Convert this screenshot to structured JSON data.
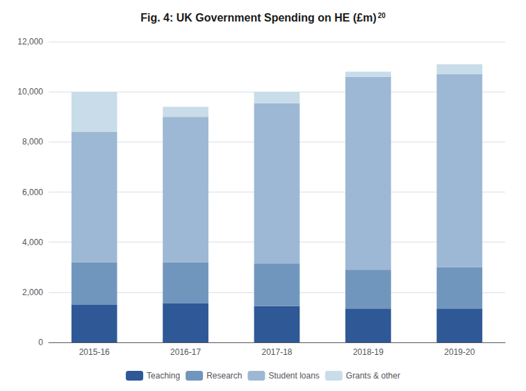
{
  "chart_data": {
    "type": "bar",
    "title": "Fig. 4: UK Government Spending on HE (£m)",
    "annotations": [
      "20"
    ],
    "categories": [
      "2015-16",
      "2016-17",
      "2017-18",
      "2018-19",
      "2019-20"
    ],
    "series": [
      {
        "name": "Teaching",
        "color": "#2e5896",
        "values": [
          1500,
          1550,
          1450,
          1350,
          1350
        ]
      },
      {
        "name": "Research",
        "color": "#7096be",
        "values": [
          1700,
          1650,
          1700,
          1550,
          1650
        ]
      },
      {
        "name": "Student loans",
        "color": "#9db8d4",
        "values": [
          5200,
          5800,
          6400,
          7700,
          7700
        ]
      },
      {
        "name": "Grants & other",
        "color": "#c8dce9",
        "values": [
          1600,
          400,
          450,
          200,
          400
        ]
      }
    ],
    "stacked": true,
    "ylim": [
      0,
      12000
    ],
    "yticks": [
      0,
      {
        "value": 2000,
        "label": "2,000"
      },
      {
        "value": 4000,
        "label": "4,000"
      },
      {
        "value": 6000,
        "label": "6,000"
      },
      {
        "value": 8000,
        "label": "8,000"
      },
      {
        "value": 10000,
        "label": "10,000"
      },
      {
        "value": 12000,
        "label": "12,000"
      }
    ],
    "grid": true,
    "legend": "bottom"
  }
}
